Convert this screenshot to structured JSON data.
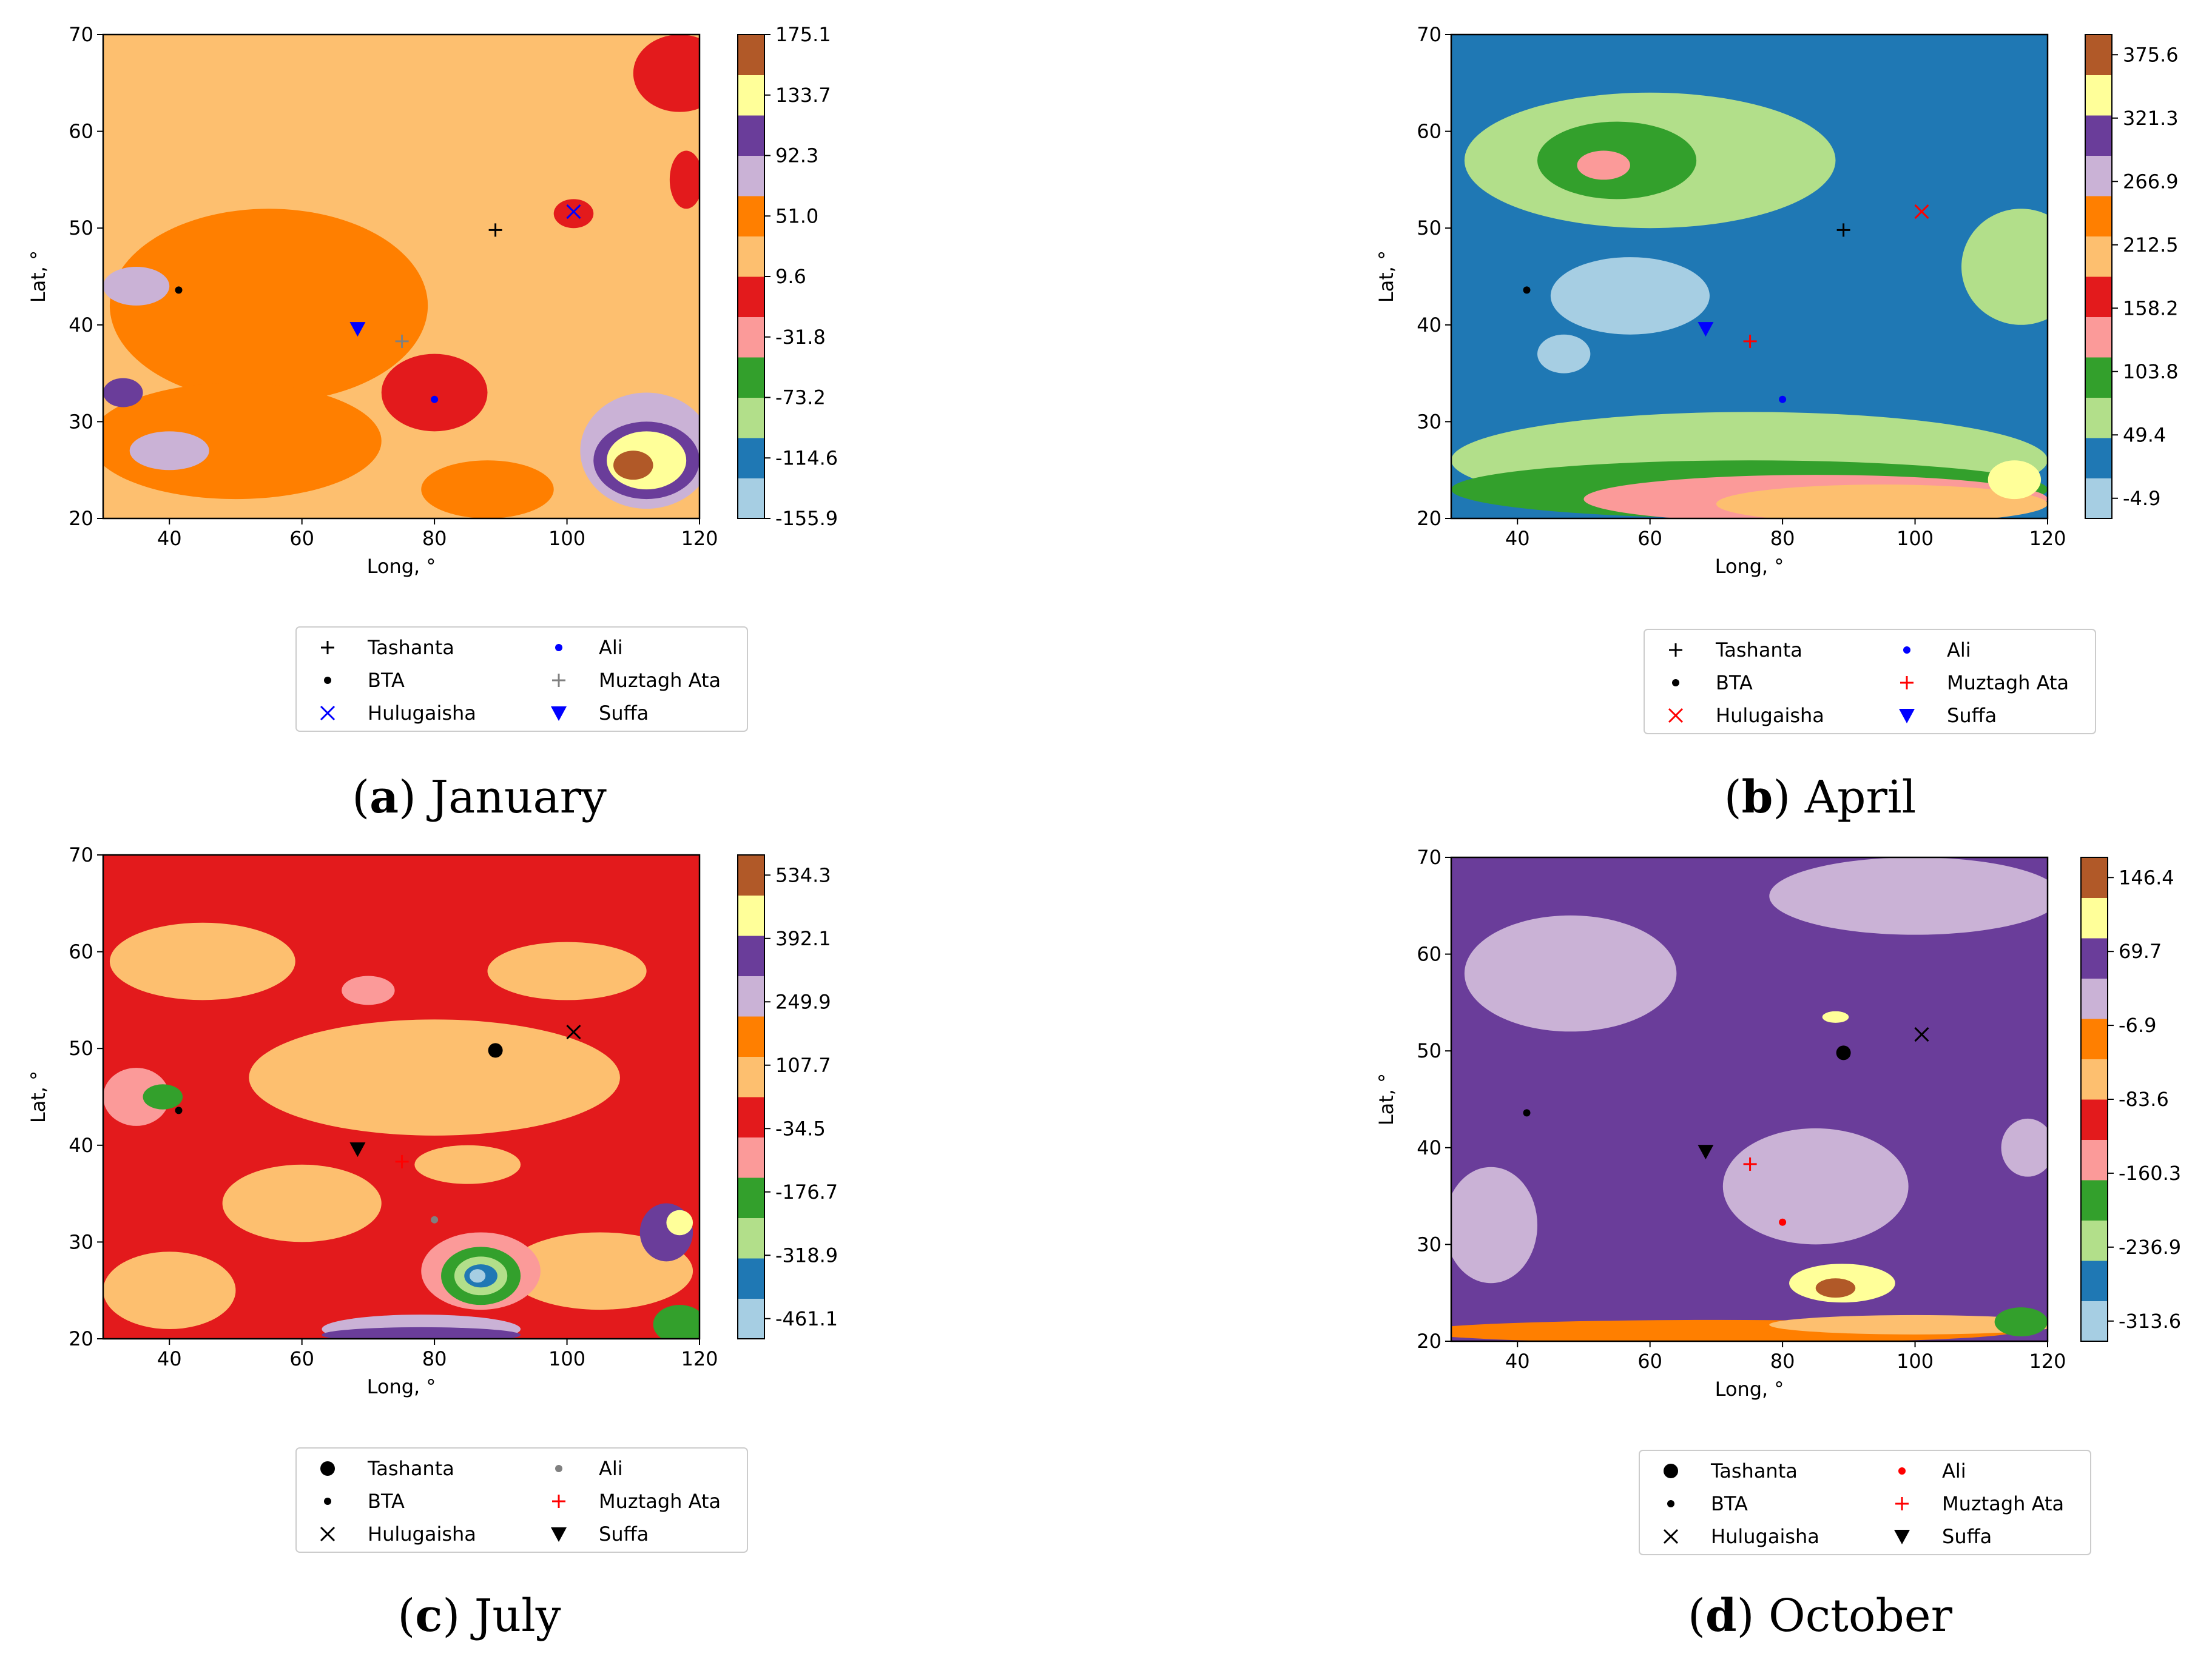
{
  "palette": [
    "#a6cee3",
    "#1f78b4",
    "#b2df8a",
    "#33a02c",
    "#fb9a99",
    "#e31a1c",
    "#fdbf6f",
    "#ff7f00",
    "#cab2d6",
    "#6a3d9a",
    "#ffff99",
    "#b15928"
  ],
  "chart_data": [
    {
      "type": "contour",
      "caption_letter": "a",
      "caption_text": "January",
      "xlabel": "Long, °",
      "ylabel": "Lat, °",
      "xlim": [
        30,
        120
      ],
      "ylim": [
        20,
        70
      ],
      "xticks": [
        "40",
        "60",
        "80",
        "100",
        "120"
      ],
      "yticks": [
        "20",
        "30",
        "40",
        "50",
        "60",
        "70"
      ],
      "colorbar_ticks": [
        "175.1",
        "133.7",
        "92.3",
        "51.0",
        "9.6",
        "-31.8",
        "-73.2",
        "-114.6",
        "-155.9"
      ],
      "field": {
        "background": 6,
        "blobs": [
          {
            "c": 7,
            "x": 55,
            "y": 42,
            "rx": 24,
            "ry": 10
          },
          {
            "c": 7,
            "x": 50,
            "y": 28,
            "rx": 22,
            "ry": 6
          },
          {
            "c": 7,
            "x": 88,
            "y": 23,
            "rx": 10,
            "ry": 3
          },
          {
            "c": 8,
            "x": 40,
            "y": 27,
            "rx": 6,
            "ry": 2
          },
          {
            "c": 8,
            "x": 35,
            "y": 44,
            "rx": 5,
            "ry": 2
          },
          {
            "c": 9,
            "x": 33,
            "y": 33,
            "rx": 3,
            "ry": 1.5
          },
          {
            "c": 5,
            "x": 80,
            "y": 33,
            "rx": 8,
            "ry": 4
          },
          {
            "c": 5,
            "x": 117,
            "y": 66,
            "rx": 7,
            "ry": 4
          },
          {
            "c": 5,
            "x": 101,
            "y": 51.5,
            "rx": 3,
            "ry": 1.5
          },
          {
            "c": 5,
            "x": 118,
            "y": 55,
            "rx": 2.5,
            "ry": 3
          },
          {
            "c": 8,
            "x": 112,
            "y": 27,
            "rx": 10,
            "ry": 6
          },
          {
            "c": 9,
            "x": 112,
            "y": 26,
            "rx": 8,
            "ry": 4
          },
          {
            "c": 10,
            "x": 112,
            "y": 26,
            "rx": 6,
            "ry": 3
          },
          {
            "c": 11,
            "x": 110,
            "y": 25.5,
            "rx": 3,
            "ry": 1.5
          }
        ]
      },
      "markers": [
        {
          "name": "Tashanta",
          "symbol": "plus",
          "color": "#000000",
          "lon": 89.2,
          "lat": 49.8
        },
        {
          "name": "BTA",
          "symbol": "dot",
          "color": "#000000",
          "lon": 41.4,
          "lat": 43.6
        },
        {
          "name": "Hulugaisha",
          "symbol": "x",
          "color": "#0000ff",
          "lon": 101.0,
          "lat": 51.7
        },
        {
          "name": "Ali",
          "symbol": "dot",
          "color": "#0000ff",
          "lon": 80.0,
          "lat": 32.3
        },
        {
          "name": "Muztagh Ata",
          "symbol": "plus",
          "color": "#808080",
          "lon": 75.1,
          "lat": 38.3
        },
        {
          "name": "Suffa",
          "symbol": "triangle",
          "color": "#0000ff",
          "lon": 68.4,
          "lat": 39.6
        }
      ]
    },
    {
      "type": "contour",
      "caption_letter": "b",
      "caption_text": "April",
      "xlabel": "Long, °",
      "ylabel": "Lat, °",
      "xlim": [
        30,
        120
      ],
      "ylim": [
        20,
        70
      ],
      "xticks": [
        "40",
        "60",
        "80",
        "100",
        "120"
      ],
      "yticks": [
        "20",
        "30",
        "40",
        "50",
        "60",
        "70"
      ],
      "colorbar_ticks": [
        "375.6",
        "321.3",
        "266.9",
        "212.5",
        "158.2",
        "103.8",
        "49.4",
        "-4.9"
      ],
      "field": {
        "background": 1,
        "blobs": [
          {
            "c": 2,
            "x": 60,
            "y": 57,
            "rx": 28,
            "ry": 7
          },
          {
            "c": 3,
            "x": 55,
            "y": 57,
            "rx": 12,
            "ry": 4
          },
          {
            "c": 4,
            "x": 53,
            "y": 56.5,
            "rx": 4,
            "ry": 1.5
          },
          {
            "c": 2,
            "x": 116,
            "y": 46,
            "rx": 9,
            "ry": 6
          },
          {
            "c": 0,
            "x": 57,
            "y": 43,
            "rx": 12,
            "ry": 4
          },
          {
            "c": 0,
            "x": 47,
            "y": 37,
            "rx": 4,
            "ry": 2
          },
          {
            "c": 2,
            "x": 75,
            "y": 26,
            "rx": 45,
            "ry": 5
          },
          {
            "c": 3,
            "x": 75,
            "y": 23,
            "rx": 45,
            "ry": 3
          },
          {
            "c": 4,
            "x": 85,
            "y": 22,
            "rx": 35,
            "ry": 2.5
          },
          {
            "c": 6,
            "x": 95,
            "y": 21.5,
            "rx": 25,
            "ry": 2
          },
          {
            "c": 10,
            "x": 115,
            "y": 24,
            "rx": 4,
            "ry": 2
          }
        ]
      },
      "markers": [
        {
          "name": "Tashanta",
          "symbol": "plus",
          "color": "#000000",
          "lon": 89.2,
          "lat": 49.8
        },
        {
          "name": "BTA",
          "symbol": "dot",
          "color": "#000000",
          "lon": 41.4,
          "lat": 43.6
        },
        {
          "name": "Hulugaisha",
          "symbol": "x",
          "color": "#ff0000",
          "lon": 101.0,
          "lat": 51.7
        },
        {
          "name": "Ali",
          "symbol": "dot",
          "color": "#0000ff",
          "lon": 80.0,
          "lat": 32.3
        },
        {
          "name": "Muztagh Ata",
          "symbol": "plus",
          "color": "#ff0000",
          "lon": 75.1,
          "lat": 38.3
        },
        {
          "name": "Suffa",
          "symbol": "triangle",
          "color": "#0000ff",
          "lon": 68.4,
          "lat": 39.6
        }
      ]
    },
    {
      "type": "contour",
      "caption_letter": "c",
      "caption_text": "July",
      "xlabel": "Long, °",
      "ylabel": "Lat, °",
      "xlim": [
        30,
        120
      ],
      "ylim": [
        20,
        70
      ],
      "xticks": [
        "40",
        "60",
        "80",
        "100",
        "120"
      ],
      "yticks": [
        "20",
        "30",
        "40",
        "50",
        "60",
        "70"
      ],
      "colorbar_ticks": [
        "534.3",
        "392.1",
        "249.9",
        "107.7",
        "-34.5",
        "-176.7",
        "-318.9",
        "-461.1"
      ],
      "field": {
        "background": 5,
        "blobs": [
          {
            "c": 6,
            "x": 45,
            "y": 59,
            "rx": 14,
            "ry": 4
          },
          {
            "c": 6,
            "x": 80,
            "y": 47,
            "rx": 28,
            "ry": 6
          },
          {
            "c": 6,
            "x": 100,
            "y": 58,
            "rx": 12,
            "ry": 3
          },
          {
            "c": 6,
            "x": 60,
            "y": 34,
            "rx": 12,
            "ry": 4
          },
          {
            "c": 6,
            "x": 40,
            "y": 25,
            "rx": 10,
            "ry": 4
          },
          {
            "c": 6,
            "x": 105,
            "y": 27,
            "rx": 14,
            "ry": 4
          },
          {
            "c": 6,
            "x": 85,
            "y": 38,
            "rx": 8,
            "ry": 2
          },
          {
            "c": 4,
            "x": 70,
            "y": 56,
            "rx": 4,
            "ry": 1.5
          },
          {
            "c": 4,
            "x": 35,
            "y": 45,
            "rx": 5,
            "ry": 3
          },
          {
            "c": 3,
            "x": 39,
            "y": 45,
            "rx": 3,
            "ry": 1.3
          },
          {
            "c": 4,
            "x": 87,
            "y": 27,
            "rx": 9,
            "ry": 4
          },
          {
            "c": 3,
            "x": 87,
            "y": 26.5,
            "rx": 6,
            "ry": 3
          },
          {
            "c": 2,
            "x": 87,
            "y": 26.5,
            "rx": 4,
            "ry": 2
          },
          {
            "c": 1,
            "x": 87,
            "y": 26.5,
            "rx": 2.5,
            "ry": 1.2
          },
          {
            "c": 0,
            "x": 86.5,
            "y": 26.5,
            "rx": 1.2,
            "ry": 0.7
          },
          {
            "c": 3,
            "x": 117,
            "y": 21.5,
            "rx": 4,
            "ry": 2
          },
          {
            "c": 9,
            "x": 115,
            "y": 31,
            "rx": 4,
            "ry": 3
          },
          {
            "c": 10,
            "x": 117,
            "y": 32,
            "rx": 2,
            "ry": 1.3
          },
          {
            "c": 8,
            "x": 78,
            "y": 21,
            "rx": 15,
            "ry": 1.5
          },
          {
            "c": 9,
            "x": 78,
            "y": 20.4,
            "rx": 15,
            "ry": 0.8
          }
        ]
      },
      "markers": [
        {
          "name": "Tashanta",
          "symbol": "bigdot",
          "color": "#000000",
          "lon": 89.2,
          "lat": 49.8
        },
        {
          "name": "BTA",
          "symbol": "dot",
          "color": "#000000",
          "lon": 41.4,
          "lat": 43.6
        },
        {
          "name": "Hulugaisha",
          "symbol": "x",
          "color": "#000000",
          "lon": 101.0,
          "lat": 51.7
        },
        {
          "name": "Ali",
          "symbol": "dot",
          "color": "#808080",
          "lon": 80.0,
          "lat": 32.3
        },
        {
          "name": "Muztagh Ata",
          "symbol": "plus",
          "color": "#ff0000",
          "lon": 75.1,
          "lat": 38.3
        },
        {
          "name": "Suffa",
          "symbol": "triangle",
          "color": "#000000",
          "lon": 68.4,
          "lat": 39.6
        }
      ]
    },
    {
      "type": "contour",
      "caption_letter": "d",
      "caption_text": "October",
      "xlabel": "Long, °",
      "ylabel": "Lat, °",
      "xlim": [
        30,
        120
      ],
      "ylim": [
        20,
        70
      ],
      "xticks": [
        "40",
        "60",
        "80",
        "100",
        "120"
      ],
      "yticks": [
        "20",
        "30",
        "40",
        "50",
        "60",
        "70"
      ],
      "colorbar_ticks": [
        "146.4",
        "69.7",
        "-6.9",
        "-83.6",
        "-160.3",
        "-236.9",
        "-313.6"
      ],
      "field": {
        "background": 9,
        "blobs": [
          {
            "c": 8,
            "x": 48,
            "y": 58,
            "rx": 16,
            "ry": 6
          },
          {
            "c": 8,
            "x": 100,
            "y": 66,
            "rx": 22,
            "ry": 4
          },
          {
            "c": 8,
            "x": 85,
            "y": 36,
            "rx": 14,
            "ry": 6
          },
          {
            "c": 8,
            "x": 36,
            "y": 32,
            "rx": 7,
            "ry": 6
          },
          {
            "c": 8,
            "x": 117,
            "y": 40,
            "rx": 4,
            "ry": 3
          },
          {
            "c": 10,
            "x": 89,
            "y": 26,
            "rx": 8,
            "ry": 2
          },
          {
            "c": 11,
            "x": 88,
            "y": 25.5,
            "rx": 3,
            "ry": 1
          },
          {
            "c": 10,
            "x": 88,
            "y": 53.5,
            "rx": 2,
            "ry": 0.6
          },
          {
            "c": 7,
            "x": 70,
            "y": 21,
            "rx": 45,
            "ry": 1.2
          },
          {
            "c": 6,
            "x": 100,
            "y": 21.7,
            "rx": 22,
            "ry": 1
          },
          {
            "c": 3,
            "x": 116,
            "y": 22,
            "rx": 4,
            "ry": 1.5
          }
        ]
      },
      "markers": [
        {
          "name": "Tashanta",
          "symbol": "bigdot",
          "color": "#000000",
          "lon": 89.2,
          "lat": 49.8
        },
        {
          "name": "BTA",
          "symbol": "dot",
          "color": "#000000",
          "lon": 41.4,
          "lat": 43.6
        },
        {
          "name": "Hulugaisha",
          "symbol": "x",
          "color": "#000000",
          "lon": 101.0,
          "lat": 51.7
        },
        {
          "name": "Ali",
          "symbol": "dot",
          "color": "#ff0000",
          "lon": 80.0,
          "lat": 32.3
        },
        {
          "name": "Muztagh Ata",
          "symbol": "plus",
          "color": "#ff0000",
          "lon": 75.1,
          "lat": 38.3
        },
        {
          "name": "Suffa",
          "symbol": "triangle",
          "color": "#000000",
          "lon": 68.4,
          "lat": 39.6
        }
      ]
    }
  ]
}
